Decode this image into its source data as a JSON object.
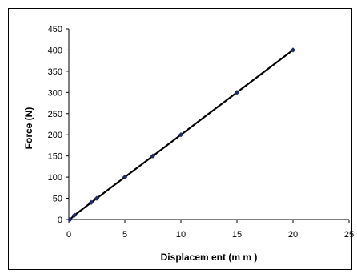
{
  "chart_data": {
    "type": "scatter",
    "xlabel": "Displacem ent (m m )",
    "ylabel": "Force (N)",
    "xlim": [
      0,
      25
    ],
    "ylim": [
      0,
      450
    ],
    "xticks": [
      0,
      5,
      10,
      15,
      20,
      25
    ],
    "yticks": [
      0,
      50,
      100,
      150,
      200,
      250,
      300,
      350,
      400,
      450
    ],
    "grid": false,
    "legend": "none",
    "marker_color": "#1f2a6b",
    "line_color": "#000000",
    "series": [
      {
        "x": [
          0.1,
          0.5,
          2.0,
          2.5,
          5.0,
          7.5,
          10.0,
          15.0,
          20.0
        ],
        "y": [
          0,
          10,
          40,
          50,
          100,
          150,
          200,
          300,
          400
        ]
      }
    ]
  }
}
